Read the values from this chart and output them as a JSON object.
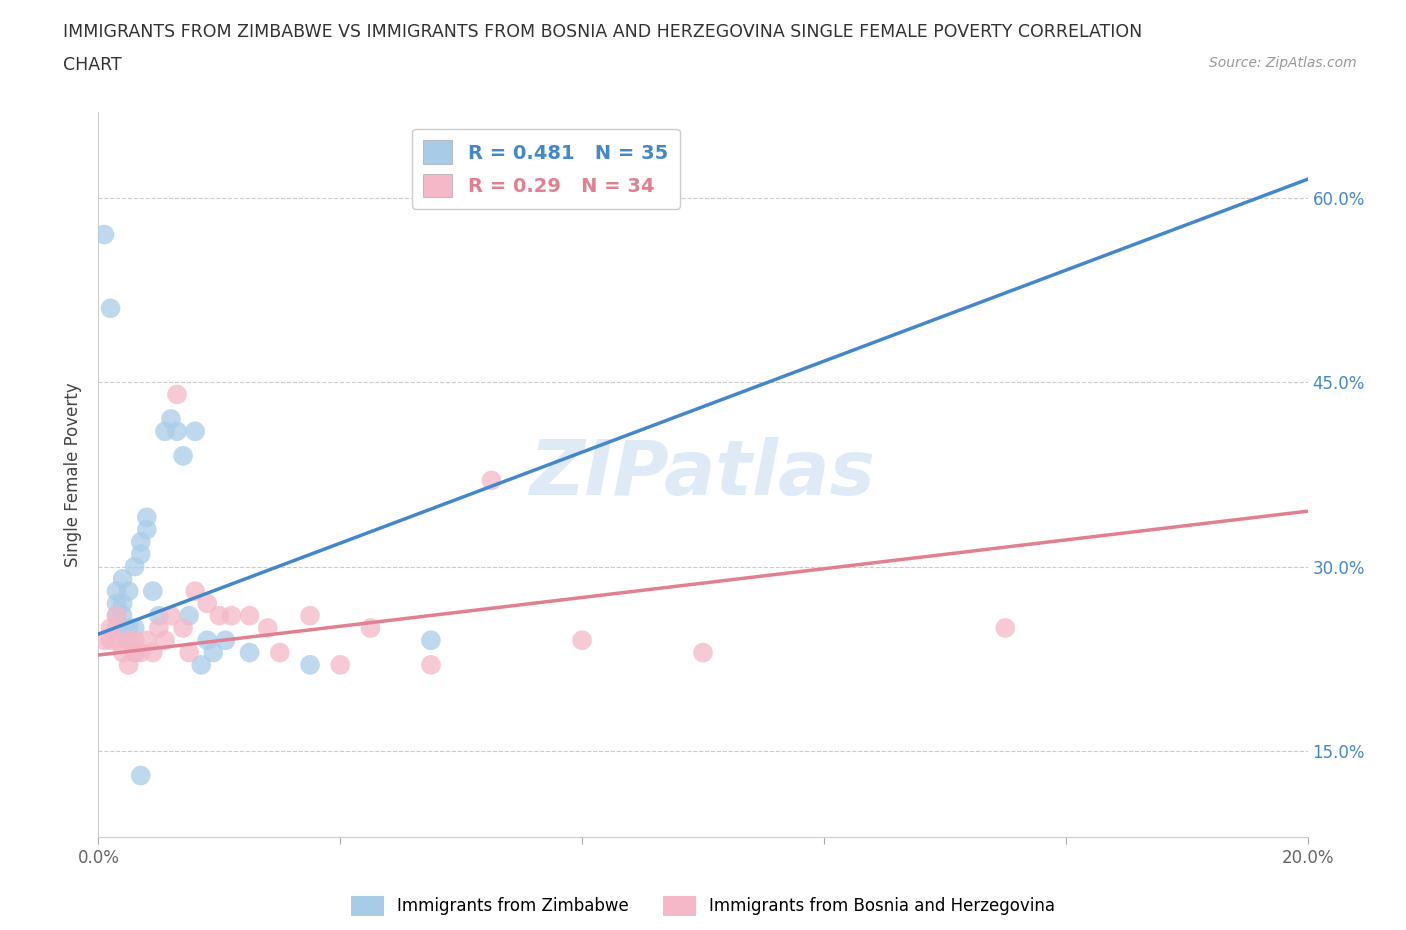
{
  "title_line1": "IMMIGRANTS FROM ZIMBABWE VS IMMIGRANTS FROM BOSNIA AND HERZEGOVINA SINGLE FEMALE POVERTY CORRELATION",
  "title_line2": "CHART",
  "source": "Source: ZipAtlas.com",
  "ylabel": "Single Female Poverty",
  "xlim": [
    0.0,
    0.2
  ],
  "ylim": [
    0.08,
    0.67
  ],
  "xticks": [
    0.0,
    0.04,
    0.08,
    0.12,
    0.16,
    0.2
  ],
  "xtick_labels": [
    "0.0%",
    "",
    "",
    "",
    "",
    "20.0%"
  ],
  "yticks": [
    0.15,
    0.3,
    0.45,
    0.6
  ],
  "ytick_right_labels": [
    "15.0%",
    "30.0%",
    "45.0%",
    "60.0%"
  ],
  "zimbabwe_color": "#a8cce8",
  "bosnia_color": "#f4b8c8",
  "zimbabwe_line_color": "#4488cc",
  "bosnia_line_color": "#e08090",
  "R_zimbabwe": 0.481,
  "N_zimbabwe": 35,
  "R_bosnia": 0.29,
  "N_bosnia": 34,
  "legend_label_zimbabwe": "Immigrants from Zimbabwe",
  "legend_label_bosnia": "Immigrants from Bosnia and Herzegovina",
  "watermark": "ZIPatlas",
  "zimbabwe_x": [
    0.001,
    0.002,
    0.003,
    0.003,
    0.003,
    0.004,
    0.004,
    0.005,
    0.005,
    0.006,
    0.006,
    0.007,
    0.007,
    0.008,
    0.008,
    0.009,
    0.01,
    0.011,
    0.012,
    0.013,
    0.014,
    0.015,
    0.016,
    0.017,
    0.018,
    0.019,
    0.021,
    0.025,
    0.035,
    0.055,
    0.003,
    0.004,
    0.005,
    0.006,
    0.007
  ],
  "zimbabwe_y": [
    0.57,
    0.51,
    0.27,
    0.28,
    0.26,
    0.27,
    0.29,
    0.25,
    0.28,
    0.3,
    0.25,
    0.32,
    0.31,
    0.33,
    0.34,
    0.28,
    0.26,
    0.41,
    0.42,
    0.41,
    0.39,
    0.26,
    0.41,
    0.22,
    0.24,
    0.23,
    0.24,
    0.23,
    0.22,
    0.24,
    0.25,
    0.26,
    0.24,
    0.23,
    0.13
  ],
  "bosnia_x": [
    0.001,
    0.002,
    0.002,
    0.003,
    0.003,
    0.004,
    0.005,
    0.005,
    0.006,
    0.006,
    0.007,
    0.008,
    0.009,
    0.01,
    0.011,
    0.012,
    0.013,
    0.014,
    0.015,
    0.016,
    0.018,
    0.02,
    0.022,
    0.025,
    0.028,
    0.03,
    0.035,
    0.04,
    0.045,
    0.055,
    0.065,
    0.08,
    0.1,
    0.15
  ],
  "bosnia_y": [
    0.24,
    0.24,
    0.25,
    0.24,
    0.26,
    0.23,
    0.22,
    0.24,
    0.23,
    0.24,
    0.23,
    0.24,
    0.23,
    0.25,
    0.24,
    0.26,
    0.44,
    0.25,
    0.23,
    0.28,
    0.27,
    0.26,
    0.26,
    0.26,
    0.25,
    0.23,
    0.26,
    0.22,
    0.25,
    0.22,
    0.37,
    0.24,
    0.23,
    0.25
  ]
}
